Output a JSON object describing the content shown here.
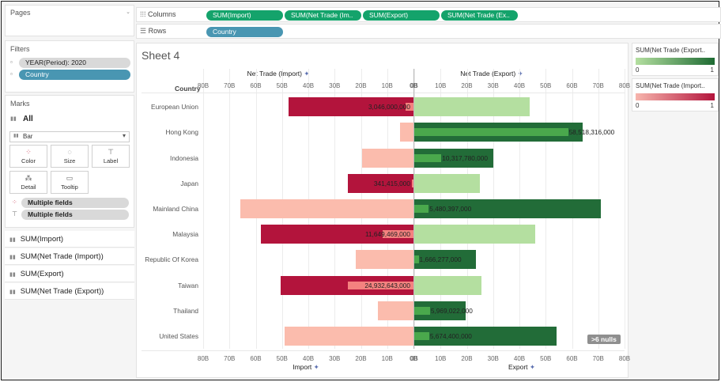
{
  "panels": {
    "pages_label": "Pages",
    "filters_label": "Filters",
    "filters": [
      "YEAR(Period): 2020",
      "Country"
    ],
    "marks_label": "Marks",
    "marks_all": "All",
    "mark_type": "Bar",
    "mark_buttons": [
      "Color",
      "Size",
      "Label",
      "Detail",
      "Tooltip"
    ],
    "mark_fields": [
      "Multiple fields",
      "Multiple fields"
    ],
    "measures": [
      "SUM(Import)",
      "SUM(Net Trade (Import))",
      "SUM(Export)",
      "SUM(Net Trade (Export))"
    ]
  },
  "shelves": {
    "columns_label": "Columns",
    "rows_label": "Rows",
    "columns_pills": [
      "SUM(Import)",
      "SUM(Net Trade (Im..",
      "SUM(Export)",
      "SUM(Net Trade (Ex.."
    ],
    "rows_pills": [
      "Country"
    ]
  },
  "sheet": {
    "title": "Sheet 4",
    "row_header": "Country",
    "nulls_badge": ">6 nulls"
  },
  "legends": [
    {
      "title": "SUM(Net Trade (Export..",
      "min": "0",
      "max": "1",
      "color_start": "#b4dfa0",
      "color_end": "#1e6b33"
    },
    {
      "title": "SUM(Net Trade (Import..",
      "min": "0",
      "max": "1",
      "color_start": "#f7b5ad",
      "color_end": "#b3143c"
    }
  ],
  "colors": {
    "import_light": "#fbbcad",
    "import_dark": "#b3143c",
    "import_inner": "#f4827f",
    "export_light": "#b4dfa0",
    "export_dark": "#226c38",
    "export_inner": "#4aa84c"
  },
  "chart_data": {
    "type": "bar",
    "categories": [
      "European Union",
      "Hong Kong",
      "Indonesia",
      "Japan",
      "Mainland China",
      "Malaysia",
      "Republic Of Korea",
      "Taiwan",
      "Thailand",
      "United States"
    ],
    "import_top_title": "Net Trade (Import)",
    "export_top_title": "Net Trade (Export)",
    "import_bottom_title": "Import",
    "export_bottom_title": "Export",
    "ticks_import": [
      "80B",
      "70B",
      "60B",
      "50B",
      "40B",
      "30B",
      "20B",
      "10B",
      "0B"
    ],
    "ticks_export": [
      "0B",
      "10B",
      "20B",
      "30B",
      "40B",
      "50B",
      "60B",
      "70B",
      "80B"
    ],
    "xlim": [
      0,
      80
    ],
    "series": [
      {
        "name": "SUM(Import)",
        "values": [
          47.5,
          5,
          19.5,
          25,
          66,
          58,
          22,
          50.5,
          13.5,
          49
        ]
      },
      {
        "name": "SUM(Net Trade (Import))",
        "values": [
          3.046,
          null,
          null,
          0.341,
          null,
          11.649,
          null,
          24.933,
          null,
          null
        ]
      },
      {
        "name": "SUM(Export)",
        "values": [
          44,
          64,
          30,
          25,
          71,
          46,
          23.5,
          25.5,
          19.5,
          54
        ]
      },
      {
        "name": "SUM(Net Trade (Export))",
        "values": [
          null,
          58.518,
          10.318,
          null,
          5.48,
          null,
          1.666,
          null,
          5.969,
          5.674
        ]
      }
    ],
    "data_labels": [
      "3,046,000,000",
      "58,518,316,000",
      "10,317,780,000",
      "341,415,000",
      "5,480,397,000",
      "11,649,469,000",
      "1,666,277,000",
      "24,932,643,000",
      "5,969,022,000",
      "5,674,400,000"
    ],
    "label_side": [
      "import",
      "export",
      "export",
      "import",
      "export",
      "import",
      "export",
      "import",
      "export",
      "export"
    ]
  }
}
